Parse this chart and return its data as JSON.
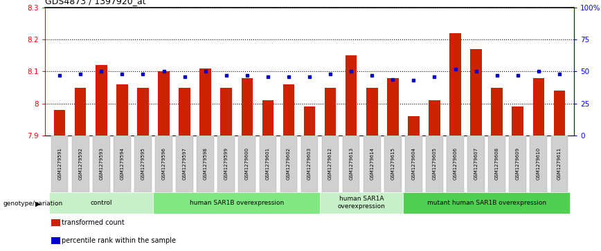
{
  "title": "GDS4873 / 1397920_at",
  "samples": [
    "GSM1279591",
    "GSM1279592",
    "GSM1279593",
    "GSM1279594",
    "GSM1279595",
    "GSM1279596",
    "GSM1279597",
    "GSM1279598",
    "GSM1279599",
    "GSM1279600",
    "GSM1279601",
    "GSM1279602",
    "GSM1279603",
    "GSM1279612",
    "GSM1279613",
    "GSM1279614",
    "GSM1279615",
    "GSM1279604",
    "GSM1279605",
    "GSM1279606",
    "GSM1279607",
    "GSM1279608",
    "GSM1279609",
    "GSM1279610",
    "GSM1279611"
  ],
  "bar_values": [
    7.98,
    8.05,
    8.12,
    8.06,
    8.05,
    8.1,
    8.05,
    8.11,
    8.05,
    8.08,
    8.01,
    8.06,
    7.99,
    8.05,
    8.15,
    8.05,
    8.08,
    7.96,
    8.01,
    8.22,
    8.17,
    8.05,
    7.99,
    8.08,
    8.04
  ],
  "dot_values": [
    47,
    48,
    50,
    48,
    48,
    50,
    46,
    50,
    47,
    47,
    46,
    46,
    46,
    48,
    50,
    47,
    44,
    43,
    46,
    52,
    50,
    47,
    47,
    50,
    48
  ],
  "bar_color": "#cc2200",
  "dot_color": "#0000cc",
  "ylim_left": [
    7.9,
    8.3
  ],
  "ylim_right": [
    0,
    100
  ],
  "yticks_left": [
    7.9,
    8.0,
    8.1,
    8.2,
    8.3
  ],
  "ytick_labels_left": [
    "7.9",
    "8",
    "8.1",
    "8.2",
    "8.3"
  ],
  "yticks_right": [
    0,
    25,
    50,
    75,
    100
  ],
  "ytick_labels_right": [
    "0",
    "25",
    "50",
    "75",
    "100%"
  ],
  "groups": [
    {
      "label": "control",
      "start": 0,
      "end": 5,
      "color": "#c8f0c8"
    },
    {
      "label": "human SAR1B overexpression",
      "start": 5,
      "end": 13,
      "color": "#80e880"
    },
    {
      "label": "human SAR1A\noverexpression",
      "start": 13,
      "end": 17,
      "color": "#c8f0c8"
    },
    {
      "label": "mutant human SAR1B overexpression",
      "start": 17,
      "end": 25,
      "color": "#50d050"
    }
  ],
  "genotype_label": "genotype/variation",
  "legend_items": [
    {
      "color": "#cc2200",
      "label": "transformed count"
    },
    {
      "color": "#0000cc",
      "label": "percentile rank within the sample"
    }
  ],
  "bar_width": 0.55
}
